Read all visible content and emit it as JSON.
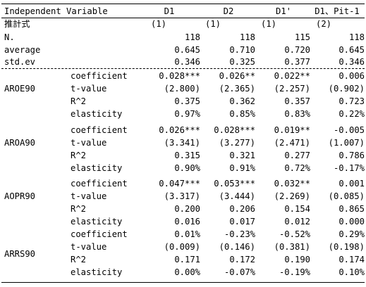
{
  "header": {
    "independent_variable": "Independent Variable",
    "columns": [
      "D1",
      "D2",
      "D1'",
      "D1、Pit-1"
    ]
  },
  "subheader": {
    "label": "推計式",
    "values": [
      "(1)",
      "(1)",
      "(1)",
      "(2)"
    ]
  },
  "summary": [
    {
      "label": "N.",
      "values": [
        "118",
        "118",
        "115",
        "118"
      ]
    },
    {
      "label": "average",
      "values": [
        "0.645",
        "0.710",
        "0.720",
        "0.645"
      ]
    },
    {
      "label": "std.ev",
      "values": [
        "0.346",
        "0.325",
        "0.377",
        "0.346"
      ]
    }
  ],
  "groups": [
    {
      "name": "AROE90",
      "rows": [
        {
          "label": "coefficient",
          "values": [
            "0.028***",
            "0.026**",
            "0.022**",
            "0.006"
          ]
        },
        {
          "label": "t-value",
          "values": [
            "(2.800)",
            "(2.365)",
            "(2.257)",
            "(0.902)"
          ]
        },
        {
          "label": "R^2",
          "values": [
            "0.375",
            "0.362",
            "0.357",
            "0.723"
          ]
        },
        {
          "label": "elasticity",
          "values": [
            "0.97%",
            "0.85%",
            "0.83%",
            "0.22%"
          ]
        }
      ]
    },
    {
      "name": "AROA90",
      "rows": [
        {
          "label": "coefficient",
          "values": [
            "0.026***",
            "0.028***",
            "0.019**",
            "-0.005"
          ]
        },
        {
          "label": "t-value",
          "values": [
            "(3.341)",
            "(3.277)",
            "(2.471)",
            "(1.007)"
          ]
        },
        {
          "label": "R^2",
          "values": [
            "0.315",
            "0.321",
            "0.277",
            "0.786"
          ]
        },
        {
          "label": "elasticity",
          "values": [
            "0.90%",
            "0.91%",
            "0.72%",
            "-0.17%"
          ]
        }
      ]
    },
    {
      "name": "AOPR90",
      "rows": [
        {
          "label": "coefficient",
          "values": [
            "0.047***",
            "0.053***",
            "0.032**",
            "0.001"
          ]
        },
        {
          "label": "t-value",
          "values": [
            "(3.317)",
            "(3.444)",
            "(2.269)",
            "(0.085)"
          ]
        },
        {
          "label": "R^2",
          "values": [
            "0.200",
            "0.206",
            "0.154",
            "0.865"
          ]
        },
        {
          "label": "elasticity",
          "values": [
            "0.016",
            "0.017",
            "0.012",
            "0.000"
          ]
        }
      ]
    },
    {
      "name": "ARRS90",
      "rows": [
        {
          "label": "coefficient",
          "values": [
            "0.01%",
            "-0.23%",
            "-0.52%",
            "0.29%"
          ]
        },
        {
          "label": "t-value",
          "values": [
            "(0.009)",
            "(0.146)",
            "(0.381)",
            "(0.198)"
          ]
        },
        {
          "label": "R^2",
          "values": [
            "0.171",
            "0.172",
            "0.190",
            "0.174"
          ]
        },
        {
          "label": "elasticity",
          "values": [
            "0.00%",
            "-0.07%",
            "-0.19%",
            "0.10%"
          ]
        }
      ]
    }
  ]
}
